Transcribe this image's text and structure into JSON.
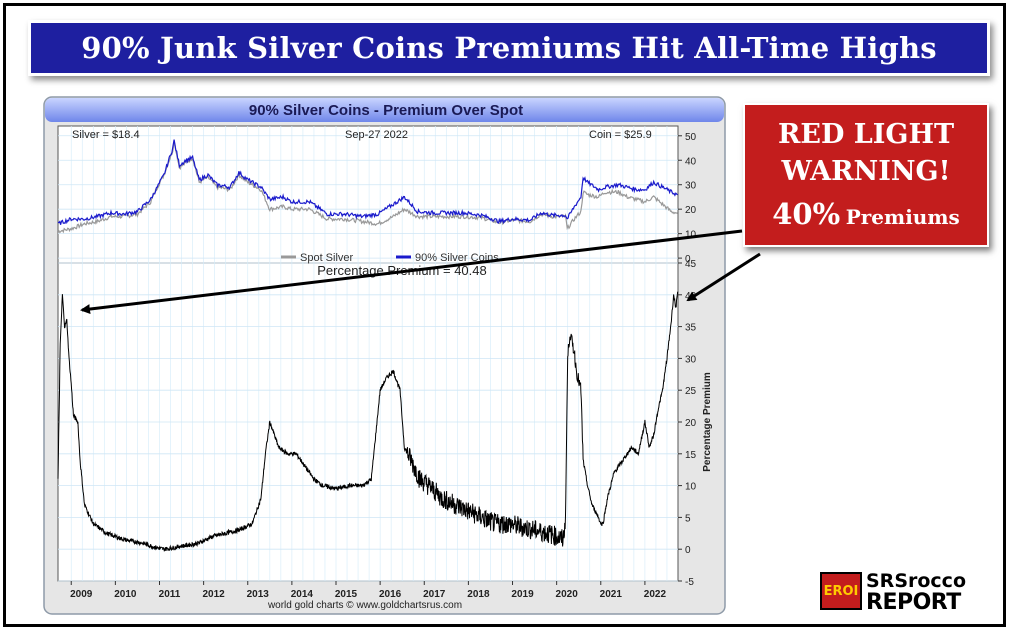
{
  "banner": {
    "title": "90% Junk Silver Coins Premiums Hit All-Time Highs"
  },
  "warning": {
    "line1": "RED LIGHT",
    "line2": "WARNING!",
    "line3_big": "40%",
    "line3_small": "Premiums"
  },
  "logo": {
    "badge": "EROI",
    "line1": "SRSrocco",
    "line2": "REPORT"
  },
  "colors": {
    "banner_bg": "#1e1fa0",
    "warning_bg": "#c31d1d",
    "spot_line": "#999999",
    "coin_line": "#1a1acc",
    "premium_line": "#000000",
    "arrow": "#000000"
  },
  "chart_data": [
    {
      "type": "line",
      "title": "90% Silver Coins - Premium Over Spot",
      "info_left": "Silver = $18.4",
      "info_center": "Sep-27  2022",
      "info_right": "Coin = $25.9",
      "ylim": [
        0,
        50
      ],
      "yticks": [
        0,
        10,
        20,
        30,
        40,
        50
      ],
      "legend": "bottom-center",
      "grid": true,
      "series": [
        {
          "name": "Spot Silver",
          "color": "#999999",
          "points": [
            [
              2008.7,
              11
            ],
            [
              2009.0,
              12
            ],
            [
              2009.3,
              14
            ],
            [
              2009.6,
              15
            ],
            [
              2009.9,
              17
            ],
            [
              2010.2,
              17
            ],
            [
              2010.5,
              18
            ],
            [
              2010.8,
              23
            ],
            [
              2010.95,
              29
            ],
            [
              2011.1,
              34
            ],
            [
              2011.3,
              44
            ],
            [
              2011.33,
              48
            ],
            [
              2011.45,
              37
            ],
            [
              2011.6,
              39
            ],
            [
              2011.75,
              41
            ],
            [
              2011.9,
              31
            ],
            [
              2012.1,
              33
            ],
            [
              2012.3,
              29
            ],
            [
              2012.6,
              28
            ],
            [
              2012.8,
              34
            ],
            [
              2013.0,
              31
            ],
            [
              2013.3,
              28
            ],
            [
              2013.5,
              20
            ],
            [
              2013.8,
              21
            ],
            [
              2014.0,
              20
            ],
            [
              2014.4,
              20
            ],
            [
              2014.8,
              16
            ],
            [
              2015.2,
              16
            ],
            [
              2015.6,
              15
            ],
            [
              2015.95,
              14
            ],
            [
              2016.3,
              17
            ],
            [
              2016.55,
              20
            ],
            [
              2016.85,
              17
            ],
            [
              2017.2,
              17
            ],
            [
              2017.5,
              17
            ],
            [
              2017.9,
              17
            ],
            [
              2018.3,
              16.5
            ],
            [
              2018.7,
              14.5
            ],
            [
              2019.0,
              15.5
            ],
            [
              2019.4,
              15
            ],
            [
              2019.65,
              18
            ],
            [
              2019.9,
              17
            ],
            [
              2020.2,
              17
            ],
            [
              2020.24,
              12
            ],
            [
              2020.4,
              16
            ],
            [
              2020.55,
              19
            ],
            [
              2020.6,
              27
            ],
            [
              2020.7,
              26
            ],
            [
              2020.95,
              25
            ],
            [
              2021.1,
              27
            ],
            [
              2021.4,
              27
            ],
            [
              2021.6,
              25
            ],
            [
              2021.8,
              24
            ],
            [
              2022.0,
              23
            ],
            [
              2022.2,
              25
            ],
            [
              2022.4,
              22
            ],
            [
              2022.6,
              19
            ],
            [
              2022.74,
              18.4
            ]
          ]
        },
        {
          "name": "90% Silver Coins",
          "color": "#1a1acc",
          "points": [
            [
              2008.7,
              14
            ],
            [
              2009.0,
              16
            ],
            [
              2009.3,
              16
            ],
            [
              2009.6,
              17
            ],
            [
              2009.9,
              18.5
            ],
            [
              2010.2,
              18
            ],
            [
              2010.5,
              19
            ],
            [
              2010.8,
              24
            ],
            [
              2010.95,
              29
            ],
            [
              2011.1,
              34
            ],
            [
              2011.3,
              45
            ],
            [
              2011.33,
              48
            ],
            [
              2011.45,
              38
            ],
            [
              2011.6,
              40
            ],
            [
              2011.75,
              41
            ],
            [
              2011.9,
              32
            ],
            [
              2012.1,
              34
            ],
            [
              2012.3,
              30
            ],
            [
              2012.6,
              29
            ],
            [
              2012.8,
              35
            ],
            [
              2013.0,
              32
            ],
            [
              2013.3,
              29
            ],
            [
              2013.5,
              24
            ],
            [
              2013.8,
              25
            ],
            [
              2014.0,
              23
            ],
            [
              2014.4,
              23
            ],
            [
              2014.8,
              18
            ],
            [
              2015.2,
              18
            ],
            [
              2015.6,
              17
            ],
            [
              2015.95,
              18
            ],
            [
              2016.3,
              22
            ],
            [
              2016.55,
              25
            ],
            [
              2016.85,
              19
            ],
            [
              2017.2,
              18.5
            ],
            [
              2017.5,
              18.5
            ],
            [
              2017.9,
              18.5
            ],
            [
              2018.3,
              17.5
            ],
            [
              2018.7,
              15
            ],
            [
              2019.0,
              16
            ],
            [
              2019.4,
              15.5
            ],
            [
              2019.65,
              18.5
            ],
            [
              2019.9,
              17.5
            ],
            [
              2020.2,
              17.5
            ],
            [
              2020.24,
              16
            ],
            [
              2020.4,
              21
            ],
            [
              2020.55,
              25
            ],
            [
              2020.6,
              33
            ],
            [
              2020.7,
              31
            ],
            [
              2020.95,
              28
            ],
            [
              2021.1,
              29
            ],
            [
              2021.4,
              30
            ],
            [
              2021.6,
              29
            ],
            [
              2021.8,
              28
            ],
            [
              2022.0,
              28
            ],
            [
              2022.2,
              31
            ],
            [
              2022.4,
              29
            ],
            [
              2022.6,
              27
            ],
            [
              2022.74,
              25.9
            ]
          ]
        }
      ]
    },
    {
      "type": "line",
      "title": "Percentage Premium = 40.48",
      "ylabel": "Percentage Premium",
      "xlim": [
        2008.7,
        2022.75
      ],
      "xticks": [
        2009,
        2010,
        2011,
        2012,
        2013,
        2014,
        2015,
        2016,
        2017,
        2018,
        2019,
        2020,
        2021,
        2022
      ],
      "ylim": [
        -5,
        45
      ],
      "yticks": [
        -5,
        0,
        5,
        10,
        15,
        20,
        25,
        30,
        35,
        40,
        45
      ],
      "grid": true,
      "source": "world gold charts © www.goldchartsrus.com",
      "series": [
        {
          "name": "",
          "color": "#000000",
          "points": [
            [
              2008.7,
              11
            ],
            [
              2008.75,
              32
            ],
            [
              2008.8,
              40
            ],
            [
              2008.85,
              35
            ],
            [
              2008.9,
              36
            ],
            [
              2008.95,
              30
            ],
            [
              2009.0,
              26
            ],
            [
              2009.05,
              21
            ],
            [
              2009.15,
              20
            ],
            [
              2009.2,
              14
            ],
            [
              2009.3,
              7
            ],
            [
              2009.5,
              4
            ],
            [
              2009.8,
              2.5
            ],
            [
              2010.2,
              1.5
            ],
            [
              2010.6,
              1
            ],
            [
              2010.9,
              0.3
            ],
            [
              2011.1,
              0
            ],
            [
              2011.3,
              0.2
            ],
            [
              2011.5,
              0.5
            ],
            [
              2011.7,
              0.7
            ],
            [
              2011.9,
              1
            ],
            [
              2012.2,
              2
            ],
            [
              2012.5,
              2.5
            ],
            [
              2012.8,
              3
            ],
            [
              2013.1,
              4
            ],
            [
              2013.3,
              8
            ],
            [
              2013.4,
              15
            ],
            [
              2013.5,
              20
            ],
            [
              2013.6,
              18
            ],
            [
              2013.7,
              16
            ],
            [
              2013.9,
              15
            ],
            [
              2014.1,
              15
            ],
            [
              2014.3,
              13
            ],
            [
              2014.5,
              11
            ],
            [
              2014.7,
              10
            ],
            [
              2015.0,
              9.5
            ],
            [
              2015.3,
              10
            ],
            [
              2015.6,
              10
            ],
            [
              2015.8,
              11
            ],
            [
              2015.9,
              18
            ],
            [
              2016.0,
              25
            ],
            [
              2016.15,
              27
            ],
            [
              2016.3,
              28
            ],
            [
              2016.45,
              25
            ],
            [
              2016.55,
              16
            ],
            [
              2016.7,
              14
            ],
            [
              2016.9,
              11
            ],
            [
              2017.1,
              10
            ],
            [
              2017.4,
              8
            ],
            [
              2017.7,
              7
            ],
            [
              2018.0,
              6
            ],
            [
              2018.3,
              5
            ],
            [
              2018.6,
              4
            ],
            [
              2018.9,
              4
            ],
            [
              2019.2,
              3.5
            ],
            [
              2019.5,
              3
            ],
            [
              2019.8,
              2.5
            ],
            [
              2020.0,
              2
            ],
            [
              2020.15,
              1.5
            ],
            [
              2020.2,
              5
            ],
            [
              2020.25,
              30
            ],
            [
              2020.3,
              34
            ],
            [
              2020.4,
              31
            ],
            [
              2020.45,
              28
            ],
            [
              2020.55,
              25
            ],
            [
              2020.6,
              14
            ],
            [
              2020.7,
              10
            ],
            [
              2020.8,
              7
            ],
            [
              2020.95,
              5
            ],
            [
              2021.0,
              4
            ],
            [
              2021.05,
              4
            ],
            [
              2021.15,
              8
            ],
            [
              2021.3,
              12
            ],
            [
              2021.5,
              14
            ],
            [
              2021.7,
              16
            ],
            [
              2021.85,
              15
            ],
            [
              2022.0,
              20
            ],
            [
              2022.1,
              16
            ],
            [
              2022.2,
              18
            ],
            [
              2022.3,
              22
            ],
            [
              2022.4,
              25
            ],
            [
              2022.5,
              30
            ],
            [
              2022.6,
              36
            ],
            [
              2022.65,
              40
            ],
            [
              2022.7,
              38
            ],
            [
              2022.75,
              40.48
            ]
          ]
        }
      ]
    }
  ]
}
